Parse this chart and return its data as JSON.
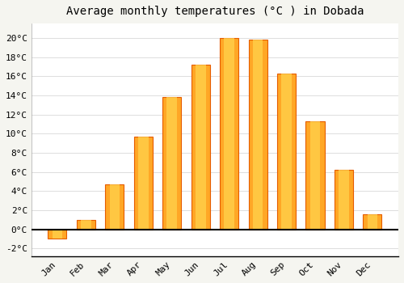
{
  "title": "Average monthly temperatures (°C ) in Dobada",
  "months": [
    "Jan",
    "Feb",
    "Mar",
    "Apr",
    "May",
    "Jun",
    "Jul",
    "Aug",
    "Sep",
    "Oct",
    "Nov",
    "Dec"
  ],
  "values": [
    -1.0,
    1.0,
    4.7,
    9.7,
    13.8,
    17.2,
    20.0,
    19.8,
    16.3,
    11.3,
    6.2,
    1.6
  ],
  "bar_color": "#FFA726",
  "bar_edge_color": "#E65C00",
  "background_color": "#F5F5F0",
  "plot_bg_color": "#FFFFFF",
  "grid_color": "#DDDDDD",
  "ylim": [
    -2.8,
    21.5
  ],
  "yticks": [
    -2,
    0,
    2,
    4,
    6,
    8,
    10,
    12,
    14,
    16,
    18,
    20
  ],
  "title_fontsize": 10,
  "tick_fontsize": 8,
  "bar_width": 0.65
}
